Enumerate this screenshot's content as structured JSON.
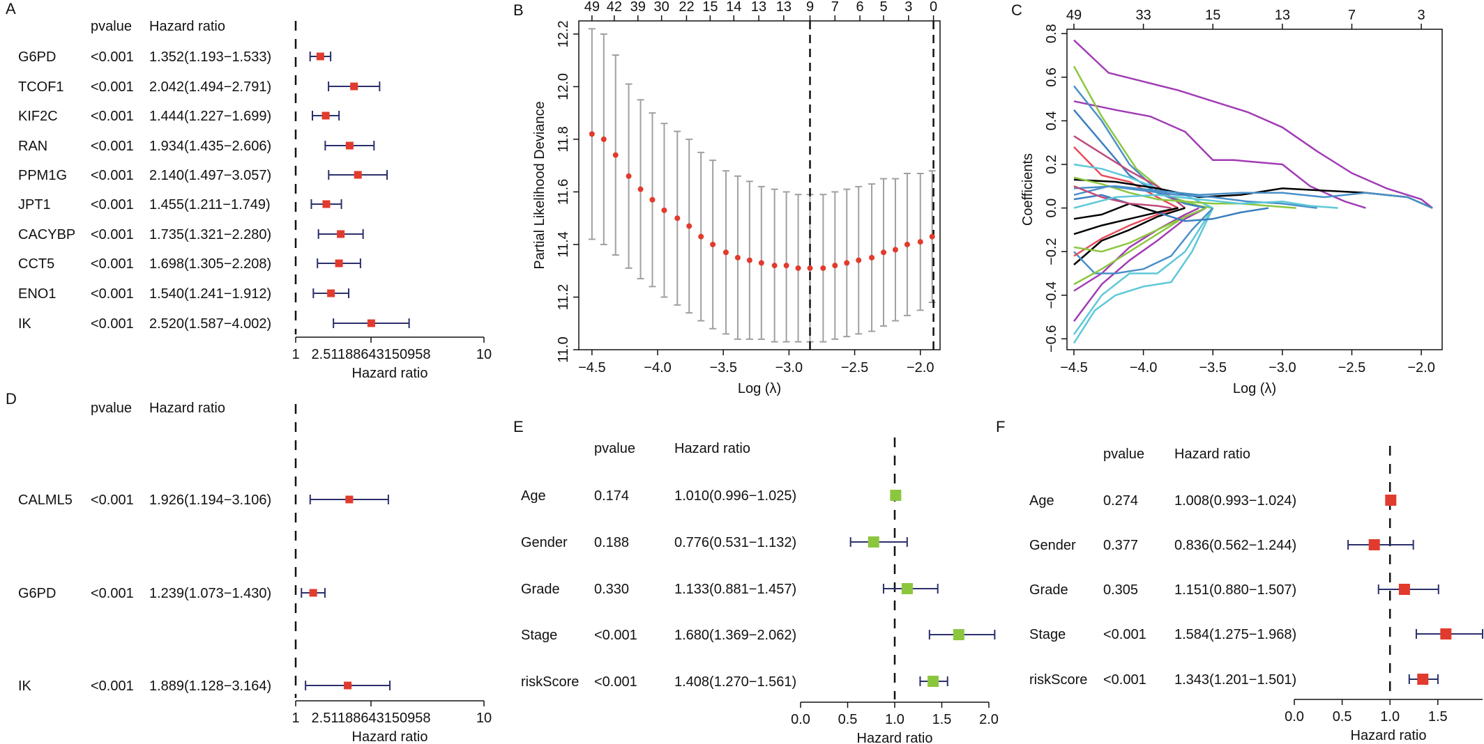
{
  "colors": {
    "point_red": "#e13b2e",
    "point_green": "#8cc63f",
    "ci_line": "#2b2f6b",
    "cv_bar": "#a0a0a0",
    "cv_point": "#e13b2e"
  },
  "panels": {
    "A": "A",
    "B": "B",
    "C": "C",
    "D": "D",
    "E": "E",
    "F": "F"
  },
  "chart_data": [
    {
      "panel": "A",
      "type": "forest",
      "col_pvalue": "pvalue",
      "col_hr": "Hazard ratio",
      "xlabel": "Hazard ratio",
      "xtick_labels": [
        "1",
        "2.51188643150958",
        "10"
      ],
      "xscale": "log10",
      "xlim": [
        1,
        10
      ],
      "rows": [
        {
          "label": "G6PD",
          "pvalue": "<0.001",
          "hr_text": "1.352(1.193−1.533)",
          "hr": 1.352,
          "lo": 1.193,
          "hi": 1.533
        },
        {
          "label": "TCOF1",
          "pvalue": "<0.001",
          "hr_text": "2.042(1.494−2.791)",
          "hr": 2.042,
          "lo": 1.494,
          "hi": 2.791
        },
        {
          "label": "KIF2C",
          "pvalue": "<0.001",
          "hr_text": "1.444(1.227−1.699)",
          "hr": 1.444,
          "lo": 1.227,
          "hi": 1.699
        },
        {
          "label": "RAN",
          "pvalue": "<0.001",
          "hr_text": "1.934(1.435−2.606)",
          "hr": 1.934,
          "lo": 1.435,
          "hi": 2.606
        },
        {
          "label": "PPM1G",
          "pvalue": "<0.001",
          "hr_text": "2.140(1.497−3.057)",
          "hr": 2.14,
          "lo": 1.497,
          "hi": 3.057
        },
        {
          "label": "JPT1",
          "pvalue": "<0.001",
          "hr_text": "1.455(1.211−1.749)",
          "hr": 1.455,
          "lo": 1.211,
          "hi": 1.749
        },
        {
          "label": "CACYBP",
          "pvalue": "<0.001",
          "hr_text": "1.735(1.321−2.280)",
          "hr": 1.735,
          "lo": 1.321,
          "hi": 2.28
        },
        {
          "label": "CCT5",
          "pvalue": "<0.001",
          "hr_text": "1.698(1.305−2.208)",
          "hr": 1.698,
          "lo": 1.305,
          "hi": 2.208
        },
        {
          "label": "ENO1",
          "pvalue": "<0.001",
          "hr_text": "1.540(1.241−1.912)",
          "hr": 1.54,
          "lo": 1.241,
          "hi": 1.912
        },
        {
          "label": "IK",
          "pvalue": "<0.001",
          "hr_text": "2.520(1.587−4.002)",
          "hr": 2.52,
          "lo": 1.587,
          "hi": 4.002
        }
      ]
    },
    {
      "panel": "B",
      "type": "scatter",
      "xlabel": "Log (λ)",
      "ylabel": "Partial Likelihood Deviance",
      "xlim": [
        -4.6,
        -1.85
      ],
      "ylim": [
        11.0,
        12.25
      ],
      "xticks": [
        -4.5,
        -4.0,
        -3.5,
        -3.0,
        -2.5,
        -2.0
      ],
      "yticks": [
        11.0,
        11.2,
        11.4,
        11.6,
        11.8,
        12.0,
        12.2
      ],
      "top_ticks": [
        {
          "x": -4.5,
          "label": "49"
        },
        {
          "x": -4.33,
          "label": "42"
        },
        {
          "x": -4.15,
          "label": "39"
        },
        {
          "x": -3.97,
          "label": "30"
        },
        {
          "x": -3.78,
          "label": "22"
        },
        {
          "x": -3.6,
          "label": "15"
        },
        {
          "x": -3.42,
          "label": "14"
        },
        {
          "x": -3.23,
          "label": "13"
        },
        {
          "x": -3.04,
          "label": "13"
        },
        {
          "x": -2.84,
          "label": "9"
        },
        {
          "x": -2.65,
          "label": "7"
        },
        {
          "x": -2.46,
          "label": "6"
        },
        {
          "x": -2.28,
          "label": "5"
        },
        {
          "x": -2.09,
          "label": "3"
        },
        {
          "x": -1.9,
          "label": "0"
        }
      ],
      "vlines": [
        -2.84,
        -1.9
      ],
      "x": [
        -4.5,
        -4.41,
        -4.32,
        -4.22,
        -4.13,
        -4.04,
        -3.95,
        -3.85,
        -3.76,
        -3.67,
        -3.58,
        -3.48,
        -3.39,
        -3.3,
        -3.21,
        -3.11,
        -3.02,
        -2.93,
        -2.84,
        -2.74,
        -2.65,
        -2.56,
        -2.47,
        -2.37,
        -2.28,
        -2.19,
        -2.1,
        -2.0,
        -1.91
      ],
      "y": [
        11.82,
        11.8,
        11.74,
        11.66,
        11.61,
        11.57,
        11.53,
        11.5,
        11.47,
        11.43,
        11.4,
        11.37,
        11.35,
        11.34,
        11.33,
        11.32,
        11.32,
        11.31,
        11.31,
        11.31,
        11.32,
        11.33,
        11.34,
        11.35,
        11.37,
        11.38,
        11.4,
        11.41,
        11.43
      ],
      "lo": [
        11.42,
        11.4,
        11.36,
        11.31,
        11.27,
        11.24,
        11.2,
        11.17,
        11.14,
        11.11,
        11.08,
        11.06,
        11.04,
        11.04,
        11.04,
        11.03,
        11.03,
        11.03,
        11.03,
        11.03,
        11.04,
        11.05,
        11.06,
        11.07,
        11.09,
        11.11,
        11.13,
        11.15,
        11.18
      ],
      "hi": [
        12.22,
        12.2,
        12.12,
        12.01,
        11.95,
        11.9,
        11.86,
        11.83,
        11.8,
        11.75,
        11.72,
        11.68,
        11.66,
        11.64,
        11.62,
        11.61,
        11.6,
        11.59,
        11.59,
        11.59,
        11.6,
        11.61,
        11.62,
        11.63,
        11.65,
        11.65,
        11.67,
        11.67,
        11.68
      ]
    },
    {
      "panel": "C",
      "type": "line",
      "xlabel": "Log (λ)",
      "ylabel": "Coefficients",
      "xlim": [
        -4.55,
        -1.85
      ],
      "ylim": [
        -0.65,
        0.82
      ],
      "xticks": [
        -4.5,
        -4.0,
        -3.5,
        -3.0,
        -2.5,
        -2.0
      ],
      "yticks": [
        -0.6,
        -0.4,
        -0.2,
        0.0,
        0.2,
        0.4,
        0.6,
        0.8
      ],
      "top_ticks": [
        {
          "x": -4.5,
          "label": "49"
        },
        {
          "x": -4.0,
          "label": "33"
        },
        {
          "x": -3.5,
          "label": "15"
        },
        {
          "x": -3.0,
          "label": "13"
        },
        {
          "x": -2.5,
          "label": "7"
        },
        {
          "x": -2.0,
          "label": "3"
        }
      ],
      "series": [
        {
          "color": "#a23bb5",
          "x": [
            -4.5,
            -4.25,
            -4.0,
            -3.75,
            -3.5,
            -3.25,
            -3.0,
            -2.75,
            -2.5,
            -2.25,
            -2.0,
            -1.92
          ],
          "y": [
            0.77,
            0.62,
            0.58,
            0.54,
            0.49,
            0.44,
            0.37,
            0.26,
            0.16,
            0.09,
            0.04,
            0.0
          ]
        },
        {
          "color": "#a23bb5",
          "x": [
            -4.5,
            -4.2,
            -3.95,
            -3.7,
            -3.5,
            -3.35,
            -3.0,
            -2.8,
            -2.55,
            -2.4
          ],
          "y": [
            0.49,
            0.45,
            0.42,
            0.35,
            0.22,
            0.22,
            0.2,
            0.1,
            0.03,
            0.0
          ]
        },
        {
          "color": "#8cc63f",
          "x": [
            -4.5,
            -4.3,
            -4.05,
            -3.8,
            -3.6,
            -3.5
          ],
          "y": [
            0.65,
            0.42,
            0.18,
            0.05,
            0.01,
            0.0
          ]
        },
        {
          "color": "#4a90c8",
          "x": [
            -4.5,
            -4.3,
            -4.1,
            -3.9,
            -3.7,
            -3.55
          ],
          "y": [
            0.56,
            0.4,
            0.2,
            0.08,
            0.02,
            0.0
          ]
        },
        {
          "color": "#3a7fc0",
          "x": [
            -4.5,
            -4.3,
            -4.1,
            -3.9,
            -3.7,
            -3.55
          ],
          "y": [
            0.45,
            0.3,
            0.15,
            0.07,
            0.02,
            0.0
          ]
        },
        {
          "color": "#c04a7a",
          "x": [
            -4.5,
            -4.3,
            -4.1,
            -3.9,
            -3.7
          ],
          "y": [
            0.33,
            0.25,
            0.17,
            0.1,
            0.0
          ]
        },
        {
          "color": "#e64b5a",
          "x": [
            -4.5,
            -4.3,
            -4.1,
            -3.9,
            -3.75
          ],
          "y": [
            0.28,
            0.15,
            0.12,
            0.05,
            0.0
          ]
        },
        {
          "color": "#5ec8d8",
          "x": [
            -4.5,
            -4.3,
            -4.1,
            -3.9,
            -3.7,
            -3.5
          ],
          "y": [
            0.2,
            0.18,
            0.14,
            0.09,
            0.06,
            0.0
          ]
        },
        {
          "color": "#000000",
          "x": [
            -4.5,
            -4.2,
            -3.9,
            -3.6,
            -3.3,
            -3.0,
            -2.7,
            -2.4,
            -2.1,
            -1.92
          ],
          "y": [
            0.13,
            0.12,
            0.09,
            0.05,
            0.06,
            0.09,
            0.08,
            0.07,
            0.05,
            0.0
          ]
        },
        {
          "color": "#4a90c8",
          "x": [
            -4.5,
            -4.2,
            -3.9,
            -3.6,
            -3.3,
            -3.0,
            -2.7,
            -2.4,
            -2.1,
            -1.92
          ],
          "y": [
            0.09,
            0.1,
            0.08,
            0.06,
            0.07,
            0.07,
            0.05,
            0.07,
            0.05,
            0.0
          ]
        },
        {
          "color": "#8cc63f",
          "x": [
            -4.5,
            -4.3,
            -4.1,
            -3.9,
            -3.7,
            -3.5,
            -3.3,
            -3.1,
            -2.9
          ],
          "y": [
            0.14,
            0.11,
            0.07,
            0.04,
            0.03,
            0.02,
            0.02,
            0.01,
            0.0
          ]
        },
        {
          "color": "#000000",
          "x": [
            -4.5,
            -4.3,
            -4.1,
            -3.9,
            -3.7
          ],
          "y": [
            -0.26,
            -0.15,
            -0.1,
            -0.04,
            0.0
          ]
        },
        {
          "color": "#000000",
          "x": [
            -4.5,
            -4.3,
            -4.1,
            -3.9,
            -3.75
          ],
          "y": [
            -0.12,
            -0.08,
            -0.05,
            -0.02,
            0.0
          ]
        },
        {
          "color": "#a23bb5",
          "x": [
            -4.5,
            -4.3,
            -4.1,
            -3.9,
            -3.7,
            -3.55
          ],
          "y": [
            -0.52,
            -0.35,
            -0.24,
            -0.15,
            -0.05,
            0.0
          ]
        },
        {
          "color": "#a23bb5",
          "x": [
            -4.5,
            -4.3,
            -4.1,
            -3.9,
            -3.7,
            -3.6
          ],
          "y": [
            -0.38,
            -0.3,
            -0.18,
            -0.1,
            -0.03,
            0.0
          ]
        },
        {
          "color": "#5ec8d8",
          "x": [
            -4.5,
            -4.35,
            -4.2,
            -4.0,
            -3.8,
            -3.65,
            -3.5
          ],
          "y": [
            -0.62,
            -0.47,
            -0.4,
            -0.36,
            -0.34,
            -0.2,
            0.0
          ]
        },
        {
          "color": "#5ec8d8",
          "x": [
            -4.5,
            -4.3,
            -4.1,
            -3.9,
            -3.7,
            -3.5
          ],
          "y": [
            -0.58,
            -0.4,
            -0.3,
            -0.3,
            -0.2,
            0.0
          ]
        },
        {
          "color": "#4a90c8",
          "x": [
            -4.5,
            -4.35,
            -4.2,
            -4.0,
            -3.8,
            -3.65,
            -3.5
          ],
          "y": [
            -0.2,
            -0.3,
            -0.3,
            -0.28,
            -0.22,
            -0.1,
            0.0
          ]
        },
        {
          "color": "#8cc63f",
          "x": [
            -4.5,
            -4.3,
            -4.1,
            -3.9,
            -3.7,
            -3.55
          ],
          "y": [
            -0.35,
            -0.28,
            -0.2,
            -0.12,
            -0.04,
            0.0
          ]
        },
        {
          "color": "#e64b5a",
          "x": [
            -4.5,
            -4.3,
            -4.1,
            -3.9,
            -3.75
          ],
          "y": [
            -0.22,
            -0.14,
            -0.08,
            -0.03,
            0.0
          ]
        },
        {
          "color": "#8cc63f",
          "x": [
            -4.5,
            -4.3,
            -4.1,
            -3.9,
            -3.7,
            -3.55
          ],
          "y": [
            -0.18,
            -0.2,
            -0.16,
            -0.1,
            -0.04,
            0.0
          ]
        },
        {
          "color": "#4a90c8",
          "x": [
            -4.5,
            -4.25,
            -4.0,
            -3.75,
            -3.5,
            -3.25,
            -3.0,
            -2.75
          ],
          "y": [
            0.06,
            0.1,
            0.08,
            0.06,
            0.05,
            0.03,
            0.02,
            0.0
          ]
        },
        {
          "color": "#3a7fc0",
          "x": [
            -4.5,
            -4.3,
            -4.1,
            -3.9,
            -3.7,
            -3.5,
            -3.3,
            -3.1
          ],
          "y": [
            0.04,
            0.06,
            0.02,
            -0.02,
            -0.06,
            -0.05,
            -0.02,
            0.0
          ]
        },
        {
          "color": "#000000",
          "x": [
            -4.5,
            -4.3,
            -4.1,
            -3.9,
            -3.75
          ],
          "y": [
            -0.05,
            -0.03,
            0.02,
            -0.02,
            0.0
          ]
        },
        {
          "color": "#c04a7a",
          "x": [
            -4.5,
            -4.3,
            -4.1,
            -3.9,
            -3.8
          ],
          "y": [
            0.1,
            0.05,
            0.02,
            0.01,
            0.0
          ]
        },
        {
          "color": "#5ec8d8",
          "x": [
            -4.5,
            -4.2,
            -3.9,
            -3.6,
            -3.3,
            -3.0,
            -2.8,
            -2.6
          ],
          "y": [
            0.0,
            0.05,
            0.06,
            0.04,
            0.02,
            0.03,
            0.01,
            0.0
          ]
        }
      ]
    },
    {
      "panel": "D",
      "type": "forest",
      "col_pvalue": "pvalue",
      "col_hr": "Hazard ratio",
      "xlabel": "Hazard ratio",
      "xtick_labels": [
        "1",
        "2.51188643150958",
        "10"
      ],
      "xscale": "log10",
      "xlim": [
        1,
        10
      ],
      "rows": [
        {
          "label": "CALML5",
          "pvalue": "<0.001",
          "hr_text": "1.926(1.194−3.106)",
          "hr": 1.926,
          "lo": 1.194,
          "hi": 3.106
        },
        {
          "label": "G6PD",
          "pvalue": "<0.001",
          "hr_text": "1.239(1.073−1.430)",
          "hr": 1.239,
          "lo": 1.073,
          "hi": 1.43
        },
        {
          "label": "IK",
          "pvalue": "<0.001",
          "hr_text": "1.889(1.128−3.164)",
          "hr": 1.889,
          "lo": 1.128,
          "hi": 3.164
        }
      ]
    },
    {
      "panel": "E",
      "type": "forest",
      "col_pvalue": "pvalue",
      "col_hr": "Hazard ratio",
      "xlabel": "Hazard ratio",
      "xticks": [
        0.0,
        0.5,
        1.0,
        1.5,
        2.0
      ],
      "xtick_labels": [
        "0.0",
        "0.5",
        "1.0",
        "1.5",
        "2.0"
      ],
      "xlim": [
        0,
        2.0
      ],
      "rows": [
        {
          "label": "Age",
          "pvalue": "0.174",
          "hr_text": "1.010(0.996−1.025)",
          "hr": 1.01,
          "lo": 0.996,
          "hi": 1.025
        },
        {
          "label": "Gender",
          "pvalue": "0.188",
          "hr_text": "0.776(0.531−1.132)",
          "hr": 0.776,
          "lo": 0.531,
          "hi": 1.132
        },
        {
          "label": "Grade",
          "pvalue": "0.330",
          "hr_text": "1.133(0.881−1.457)",
          "hr": 1.133,
          "lo": 0.881,
          "hi": 1.457
        },
        {
          "label": "Stage",
          "pvalue": "<0.001",
          "hr_text": "1.680(1.369−2.062)",
          "hr": 1.68,
          "lo": 1.369,
          "hi": 2.062
        },
        {
          "label": "riskScore",
          "pvalue": "<0.001",
          "hr_text": "1.408(1.270−1.561)",
          "hr": 1.408,
          "lo": 1.27,
          "hi": 1.561
        }
      ]
    },
    {
      "panel": "F",
      "type": "forest",
      "col_pvalue": "pvalue",
      "col_hr": "Hazard ratio",
      "xlabel": "Hazard ratio",
      "xticks": [
        0.0,
        0.5,
        1.0,
        1.5
      ],
      "xtick_labels": [
        "0.0",
        "0.5",
        "1.0",
        "1.5"
      ],
      "xlim": [
        0,
        1.968
      ],
      "rows": [
        {
          "label": "Age",
          "pvalue": "0.274",
          "hr_text": "1.008(0.993−1.024)",
          "hr": 1.008,
          "lo": 0.993,
          "hi": 1.024
        },
        {
          "label": "Gender",
          "pvalue": "0.377",
          "hr_text": "0.836(0.562−1.244)",
          "hr": 0.836,
          "lo": 0.562,
          "hi": 1.244
        },
        {
          "label": "Grade",
          "pvalue": "0.305",
          "hr_text": "1.151(0.880−1.507)",
          "hr": 1.151,
          "lo": 0.88,
          "hi": 1.507
        },
        {
          "label": "Stage",
          "pvalue": "<0.001",
          "hr_text": "1.584(1.275−1.968)",
          "hr": 1.584,
          "lo": 1.275,
          "hi": 1.968
        },
        {
          "label": "riskScore",
          "pvalue": "<0.001",
          "hr_text": "1.343(1.201−1.501)",
          "hr": 1.343,
          "lo": 1.201,
          "hi": 1.501
        }
      ]
    }
  ]
}
